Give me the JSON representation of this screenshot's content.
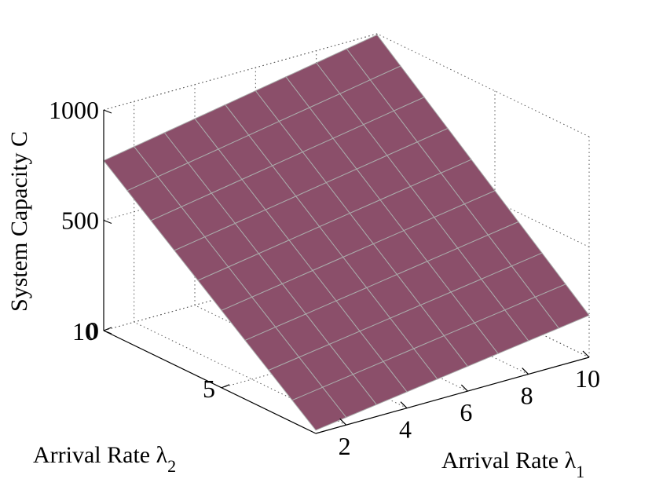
{
  "chart_data": {
    "type": "surface",
    "zlabel": "System Capacity C",
    "xlabel": "Arrival Rate λ",
    "xlabel_sub": "1",
    "ylabel": "Arrival Rate λ",
    "ylabel_sub": "2",
    "x_ticks": [
      "2",
      "4",
      "6",
      "8",
      "10"
    ],
    "y_ticks": [
      "5",
      "10"
    ],
    "z_ticks": [
      "0",
      "500",
      "1000"
    ],
    "x_range": [
      1,
      10
    ],
    "y_range": [
      1,
      10
    ],
    "z_range": [
      0,
      1000
    ],
    "grid": true,
    "surface_color": "#8b4f6a",
    "mesh_color": "#aaaaaa",
    "corner_values": {
      "x1_y1": 15,
      "x1_y10": 770,
      "x10_y1": 190,
      "x10_y10": 995
    }
  }
}
